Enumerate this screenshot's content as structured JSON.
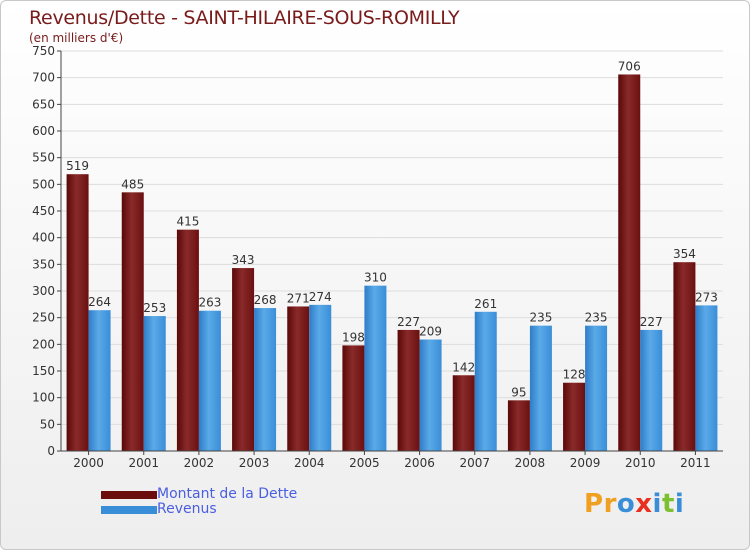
{
  "title": "Revenus/Dette - SAINT-HILAIRE-SOUS-ROMILLY",
  "subtitle": "(en milliers d'€)",
  "logo": {
    "text": "Proxiti",
    "letters": [
      "P",
      "r",
      "o",
      "x",
      "i",
      "t",
      "i"
    ],
    "colors": [
      "#f0a020",
      "#f0a020",
      "#3a8ed8",
      "#e83020",
      "#3a8ed8",
      "#7cc030",
      "#3a8ed8"
    ]
  },
  "legend": [
    {
      "label": "Montant de la Dette",
      "color": "#6b0d0d"
    },
    {
      "label": "Revenus",
      "color": "#3a8ed8"
    }
  ],
  "colors": {
    "dette": "#7a1a1a",
    "revenus": "#4a9ee0",
    "label": "#333333",
    "axis": "#444444",
    "grid": "#dddddd"
  },
  "chart_data": {
    "type": "bar",
    "title": "Revenus/Dette - SAINT-HILAIRE-SOUS-ROMILLY",
    "ylabel": "(en milliers d'€)",
    "categories": [
      "2000",
      "2001",
      "2002",
      "2003",
      "2004",
      "2005",
      "2006",
      "2007",
      "2008",
      "2009",
      "2010",
      "2011"
    ],
    "series": [
      {
        "name": "Montant de la Dette",
        "values": [
          519,
          485,
          415,
          343,
          271,
          198,
          227,
          142,
          95,
          128,
          706,
          354
        ]
      },
      {
        "name": "Revenus",
        "values": [
          264,
          253,
          263,
          268,
          274,
          310,
          209,
          261,
          235,
          235,
          227,
          273
        ]
      }
    ],
    "ylim": [
      0,
      750
    ],
    "yticks": [
      0,
      50,
      100,
      150,
      200,
      250,
      300,
      350,
      400,
      450,
      500,
      550,
      600,
      650,
      700,
      750
    ]
  }
}
